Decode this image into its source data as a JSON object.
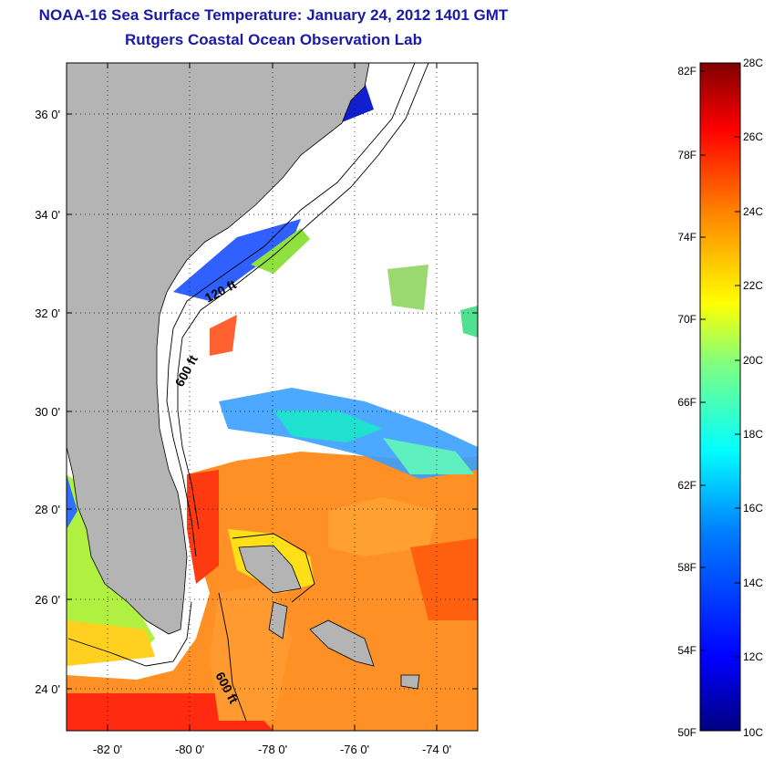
{
  "title": "NOAA-16 Sea Surface Temperature:  January 24, 2012 1401 GMT",
  "subtitle": "Rutgers Coastal Ocean Observation Lab",
  "map": {
    "lat_labels": [
      "36 0'",
      "34 0'",
      "32 0'",
      "30 0'",
      "28 0'",
      "26 0'",
      "24 0'"
    ],
    "lon_labels": [
      "-82 0'",
      "-80 0'",
      "-78 0'",
      "-76 0'",
      "-74 0'"
    ],
    "contour_labels": [
      "120 ft",
      "600 ft",
      "600 ft"
    ],
    "colors": {
      "land": "#b4b4b4",
      "ocean_no_data": "#ffffff"
    }
  },
  "colorbar": {
    "fahrenheit": [
      "82F",
      "78F",
      "74F",
      "70F",
      "66F",
      "62F",
      "58F",
      "54F",
      "50F"
    ],
    "celsius": [
      "28C",
      "26C",
      "24C",
      "22C",
      "20C",
      "18C",
      "16C",
      "14C",
      "12C",
      "10C"
    ],
    "colors": [
      "#000080",
      "#0000ff",
      "#0080ff",
      "#00ffff",
      "#80ff80",
      "#ffff00",
      "#ff8000",
      "#ff0000",
      "#800000"
    ]
  }
}
